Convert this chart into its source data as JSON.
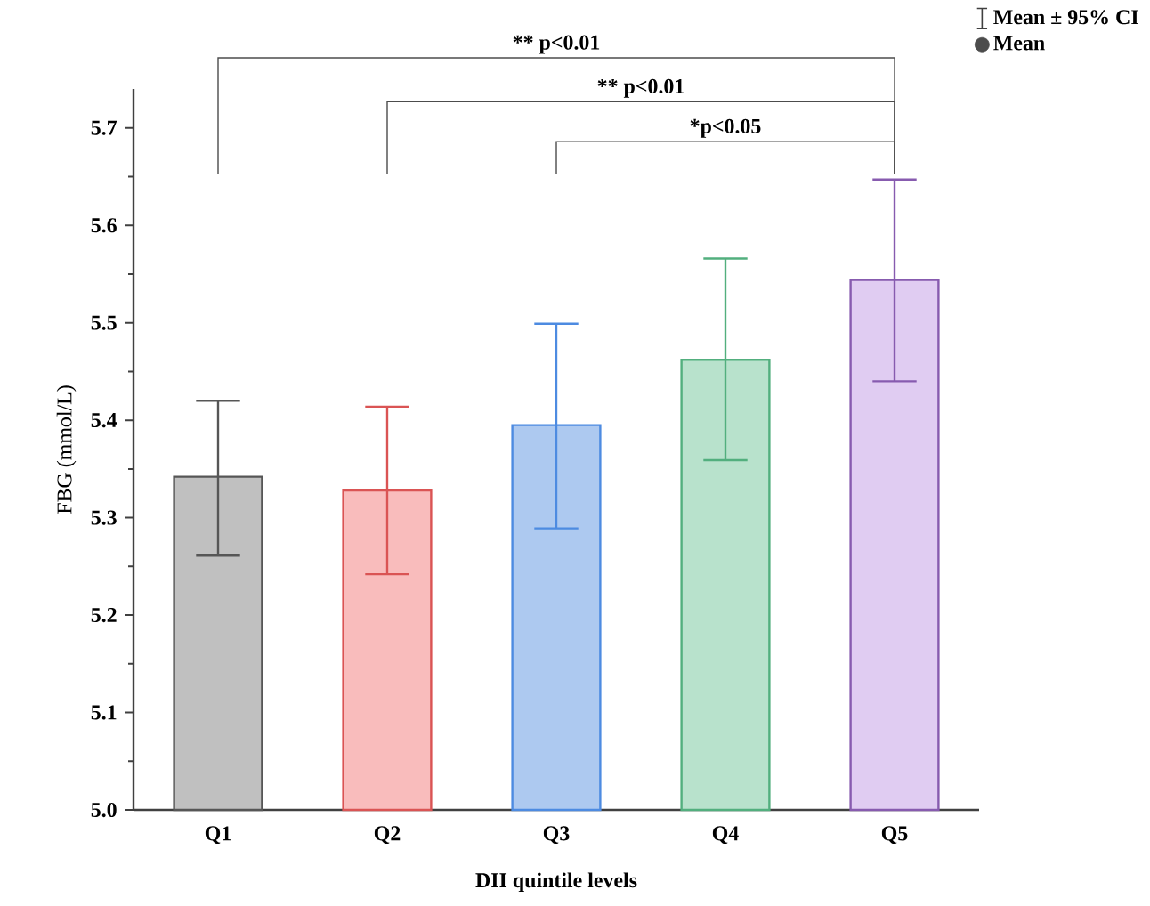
{
  "chart_data": {
    "type": "bar",
    "categories": [
      "Q1",
      "Q2",
      "Q3",
      "Q4",
      "Q5"
    ],
    "series": [
      {
        "name": "Mean",
        "values": [
          5.342,
          5.328,
          5.395,
          5.462,
          5.544
        ],
        "colors": [
          "#c0c0c0",
          "#f9bcbc",
          "#adc9f0",
          "#b8e2cc",
          "#e0ccf2"
        ],
        "errors": [
          [
            5.261,
            5.42
          ],
          [
            5.242,
            5.414
          ],
          [
            5.289,
            5.499
          ],
          [
            5.359,
            5.566
          ],
          [
            5.44,
            5.647
          ]
        ]
      }
    ],
    "xlabel": "DII quintile levels",
    "ylabel": "FBG (mmol/L)",
    "ylim": [
      5.0,
      5.74
    ],
    "yticks": [
      {
        "value": 5,
        "label": "5.0"
      },
      5.1,
      5.2,
      5.3,
      5.4,
      5.5,
      5.6,
      5.7
    ],
    "legend": "top right",
    "annotations": [
      "** p<0.01",
      "** p<0.01",
      "*p<0.05",
      "Mean ± 95% CI"
    ]
  }
}
